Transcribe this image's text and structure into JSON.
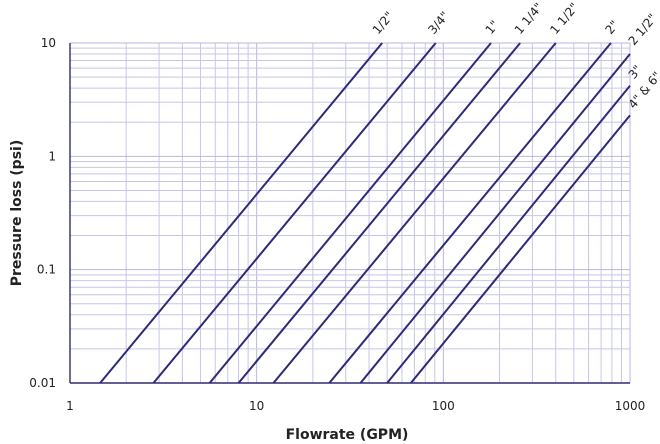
{
  "chart_data": {
    "type": "line",
    "xscale": "log",
    "yscale": "log",
    "xlim": [
      1,
      1000
    ],
    "ylim": [
      0.01,
      10
    ],
    "xlabel": "Flowrate (GPM)",
    "ylabel": "Pressure loss (psi)",
    "x_ticks": [
      {
        "value": 1,
        "label": "1"
      },
      {
        "value": 10,
        "label": "10"
      },
      {
        "value": 100,
        "label": "100"
      },
      {
        "value": 1000,
        "label": "1000"
      }
    ],
    "y_ticks": [
      {
        "value": 0.01,
        "label": "0.01"
      },
      {
        "value": 0.1,
        "label": "0.1"
      },
      {
        "value": 1,
        "label": "1"
      },
      {
        "value": 10,
        "label": "10"
      }
    ],
    "grid": true,
    "series": [
      {
        "name": "1/2\"",
        "x": [
          1.45,
          47
        ],
        "y": [
          0.01,
          10
        ]
      },
      {
        "name": "3/4\"",
        "x": [
          2.8,
          91
        ],
        "y": [
          0.01,
          10
        ]
      },
      {
        "name": "1\"",
        "x": [
          5.6,
          180
        ],
        "y": [
          0.01,
          10
        ]
      },
      {
        "name": "1 1/4\"",
        "x": [
          8.0,
          258
        ],
        "y": [
          0.01,
          10
        ]
      },
      {
        "name": "1 1/2\"",
        "x": [
          12.3,
          400
        ],
        "y": [
          0.01,
          10
        ]
      },
      {
        "name": "2\"",
        "x": [
          24.5,
          790
        ],
        "y": [
          0.01,
          10
        ]
      },
      {
        "name": "2 1/2\"",
        "x": [
          36,
          1000
        ],
        "y": [
          0.01,
          8.0
        ]
      },
      {
        "name": "3\"",
        "x": [
          50,
          1000
        ],
        "y": [
          0.01,
          4.2
        ]
      },
      {
        "name": "4\" & 6\"",
        "x": [
          67,
          1000
        ],
        "y": [
          0.01,
          2.3
        ]
      }
    ]
  }
}
